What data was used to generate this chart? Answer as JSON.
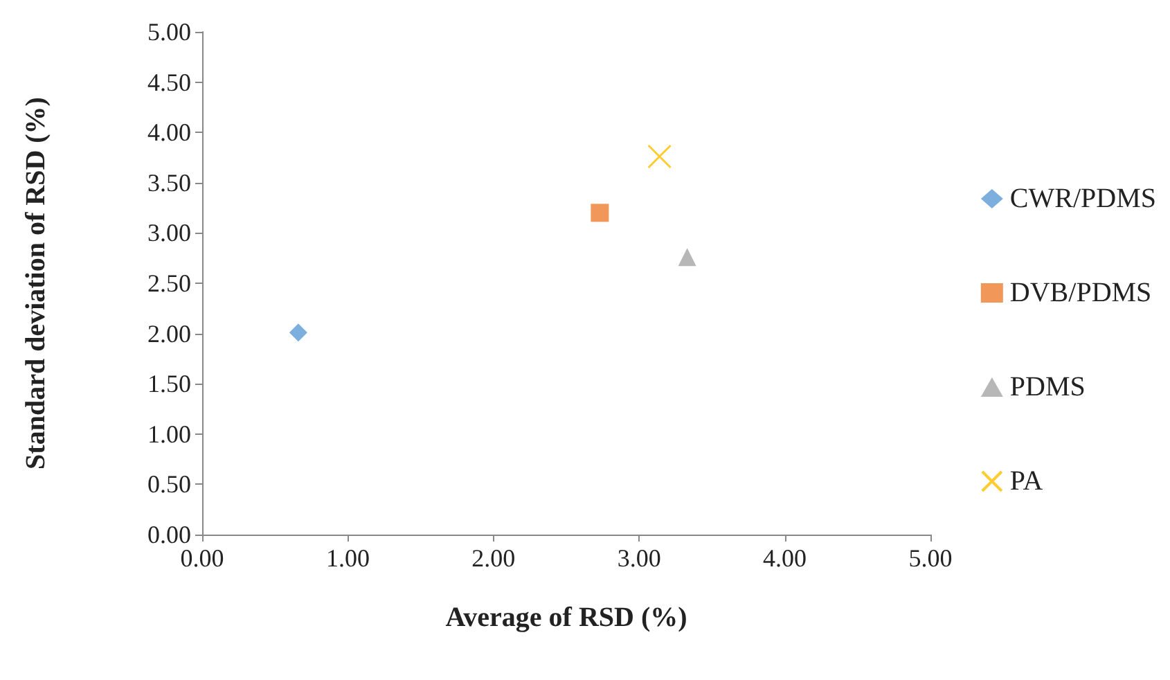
{
  "chart_data": {
    "type": "scatter",
    "xlabel": "Average of RSD (%)",
    "ylabel": "Standard deviation of RSD (%)",
    "series": [
      {
        "name": "CWR/PDMS",
        "color": "#5b9bd5",
        "marker": "diamond",
        "x": [
          0.66
        ],
        "values": [
          2.01
        ]
      },
      {
        "name": "DVB/PDMS",
        "color": "#ed7d31",
        "marker": "square",
        "x": [
          2.73
        ],
        "values": [
          3.2
        ]
      },
      {
        "name": "PDMS",
        "color": "#a5a5a5",
        "marker": "triangle",
        "x": [
          3.33
        ],
        "values": [
          2.76
        ]
      },
      {
        "name": "PA",
        "color": "#ffc000",
        "marker": "cross",
        "x": [
          3.14
        ],
        "values": [
          3.76
        ]
      }
    ],
    "xlim": [
      0,
      5
    ],
    "xticks": [
      {
        "value": 0,
        "label": "0.00"
      },
      {
        "value": 1,
        "label": "1.00"
      },
      {
        "value": 2,
        "label": "2.00"
      },
      {
        "value": 3,
        "label": "3.00"
      },
      {
        "value": 4,
        "label": "4.00"
      },
      {
        "value": 5,
        "label": "5.00"
      }
    ],
    "ylim": [
      0,
      5
    ],
    "yticks": [
      {
        "value": 0,
        "label": "0.00"
      },
      {
        "value": 0.5,
        "label": "0.50"
      },
      {
        "value": 1,
        "label": "1.00"
      },
      {
        "value": 1.5,
        "label": "1.50"
      },
      {
        "value": 2,
        "label": "2.00"
      },
      {
        "value": 2.5,
        "label": "2.50"
      },
      {
        "value": 3,
        "label": "3.00"
      },
      {
        "value": 3.5,
        "label": "3.50"
      },
      {
        "value": 4,
        "label": "4.00"
      },
      {
        "value": 4.5,
        "label": "4.50"
      },
      {
        "value": 5,
        "label": "5.00"
      }
    ],
    "grid": false,
    "legend": "right"
  }
}
